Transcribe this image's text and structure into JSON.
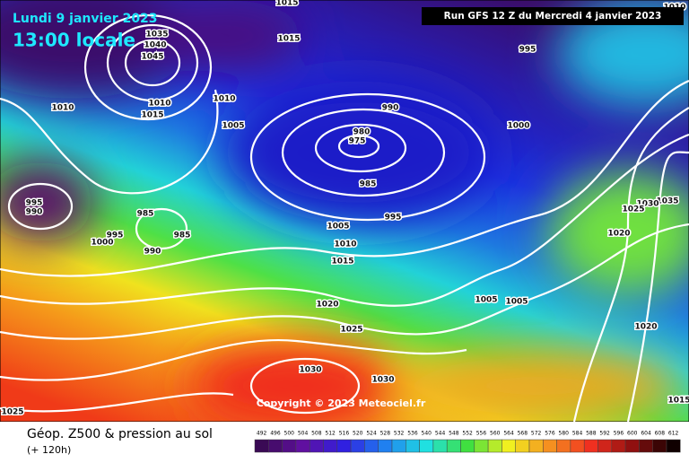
{
  "header": {
    "date": "Lundi 9 janvier 2023",
    "time": "13:00 locale",
    "run": "Run GFS 12 Z du Mercredi 4 janvier 2023"
  },
  "copyright": "Copyright © 2023 Meteociel.fr",
  "legend": {
    "title": "Géop. Z500 & pression au sol",
    "lead": "(+ 120h)",
    "values": [
      492,
      496,
      500,
      504,
      508,
      512,
      516,
      520,
      524,
      528,
      532,
      536,
      540,
      544,
      548,
      552,
      556,
      560,
      564,
      568,
      572,
      576,
      580,
      584,
      588,
      592,
      596,
      600,
      604,
      608,
      612
    ]
  },
  "isobar_labels": [
    1015,
    1015,
    1010,
    1035,
    1040,
    1045,
    1010,
    1010,
    1015,
    1010,
    1005,
    990,
    980,
    975,
    985,
    1000,
    995,
    995,
    990,
    985,
    995,
    1000,
    985,
    990,
    1005,
    995,
    1010,
    1015,
    1020,
    1025,
    1030,
    1030,
    1025,
    1005,
    1005,
    1020,
    1035,
    1030,
    1025,
    1020,
    1015
  ]
}
